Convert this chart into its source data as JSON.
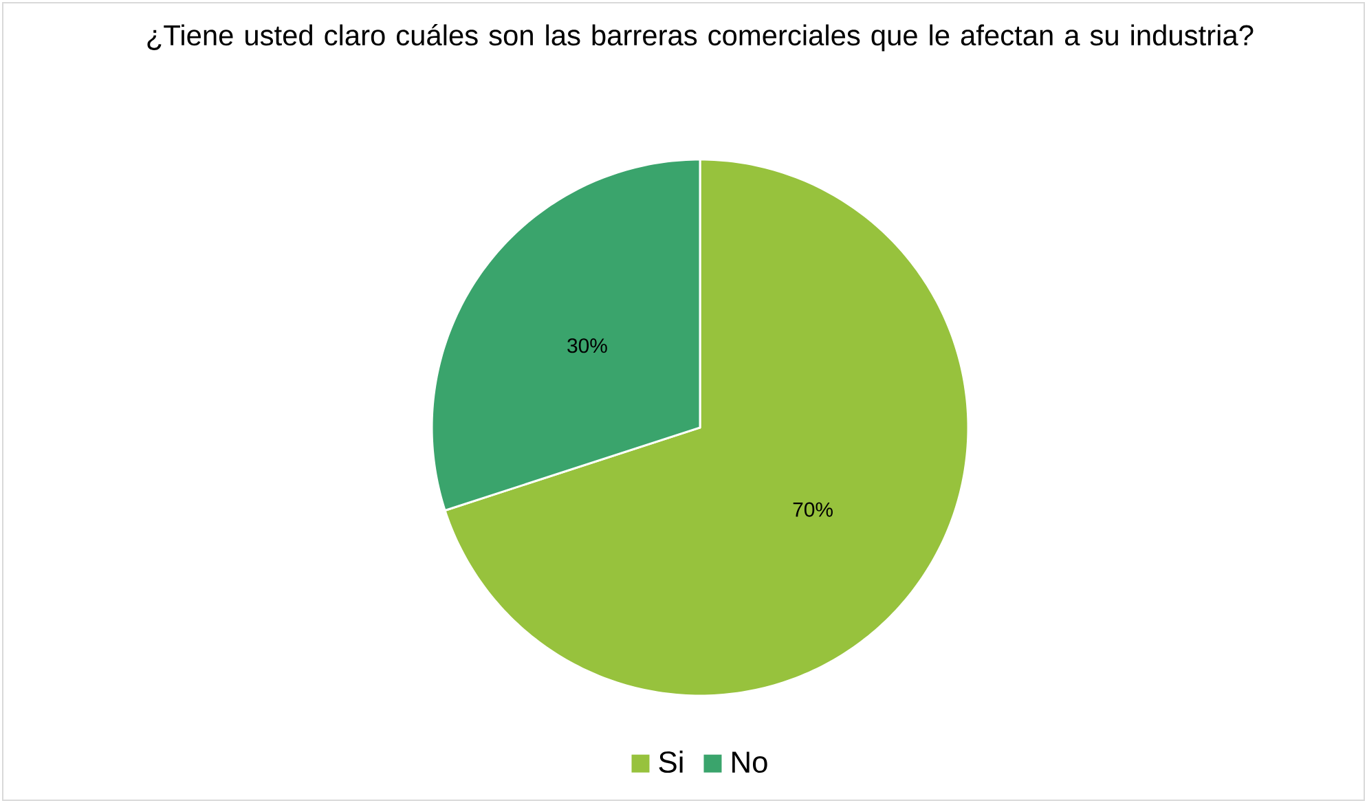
{
  "chart_data": {
    "type": "pie",
    "title": "¿Tiene usted claro cuáles son las barreras comerciales que le afectan a su industria?",
    "categories": [
      "Si",
      "No"
    ],
    "values": [
      70,
      30
    ],
    "colors": [
      "#97c23d",
      "#3aa46c"
    ],
    "value_labels": [
      "70%",
      "30%"
    ],
    "legend": "bottom"
  }
}
